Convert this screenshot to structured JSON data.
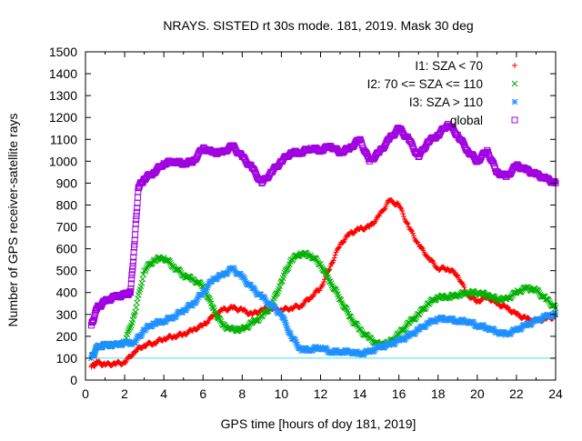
{
  "chart_data": {
    "type": "scatter",
    "title": "NRAYS. SISTED rt 30s mode. 181, 2019. Mask 30 deg",
    "xlabel": "GPS time [hours of doy 181, 2019]",
    "ylabel": "Number of GPS receiver-satellite rays",
    "xlim": [
      0,
      24
    ],
    "ylim": [
      0,
      1500
    ],
    "xticks": [
      "0",
      "2",
      "4",
      "6",
      "8",
      "10",
      "12",
      "14",
      "16",
      "18",
      "20",
      "22",
      "24"
    ],
    "yticks": [
      "0",
      "100",
      "200",
      "300",
      "400",
      "500",
      "600",
      "700",
      "800",
      "900",
      "1000",
      "1100",
      "1200",
      "1300",
      "1400",
      "1500"
    ],
    "grid": false,
    "legend_position": "top-right",
    "reference_line": {
      "y": 100,
      "color": "#40e0e0"
    },
    "series": [
      {
        "name": "I1: SZA < 70",
        "marker": "+",
        "color": "#ff0000",
        "x": [
          0.3,
          0.6,
          1.0,
          1.5,
          2.0,
          2.5,
          3.0,
          3.5,
          4.0,
          4.5,
          5.0,
          5.5,
          6.0,
          6.5,
          7.0,
          7.5,
          8.0,
          8.5,
          9.0,
          9.5,
          10.0,
          10.5,
          11.0,
          11.5,
          12.0,
          12.5,
          13.0,
          13.5,
          14.0,
          14.5,
          15.0,
          15.5,
          16.0,
          16.5,
          17.0,
          17.5,
          18.0,
          18.5,
          19.0,
          19.5,
          20.0,
          20.5,
          21.0,
          21.5,
          22.0,
          22.5,
          23.0,
          23.5,
          24.0
        ],
        "y": [
          60,
          80,
          70,
          75,
          80,
          130,
          160,
          170,
          190,
          200,
          210,
          230,
          250,
          290,
          320,
          330,
          320,
          300,
          320,
          330,
          320,
          330,
          340,
          380,
          420,
          520,
          620,
          670,
          690,
          700,
          750,
          820,
          800,
          700,
          620,
          560,
          510,
          510,
          480,
          390,
          360,
          380,
          350,
          330,
          300,
          280,
          270,
          280,
          290
        ]
      },
      {
        "name": "I2: 70 <= SZA <= 110",
        "marker": "x",
        "color": "#00b000",
        "x": [
          0.3,
          0.6,
          1.0,
          1.5,
          2.0,
          2.5,
          3.0,
          3.5,
          4.0,
          4.5,
          5.0,
          5.5,
          6.0,
          6.5,
          7.0,
          7.5,
          8.0,
          8.5,
          9.0,
          9.5,
          10.0,
          10.5,
          11.0,
          11.5,
          12.0,
          12.5,
          13.0,
          13.5,
          14.0,
          14.5,
          15.0,
          15.5,
          16.0,
          16.5,
          17.0,
          17.5,
          18.0,
          18.5,
          19.0,
          19.5,
          20.0,
          20.5,
          21.0,
          21.5,
          22.0,
          22.5,
          23.0,
          23.5,
          24.0
        ],
        "y": [
          100,
          150,
          160,
          160,
          170,
          300,
          500,
          550,
          560,
          520,
          480,
          460,
          430,
          330,
          250,
          230,
          230,
          260,
          290,
          340,
          450,
          550,
          580,
          570,
          530,
          450,
          370,
          290,
          230,
          190,
          160,
          170,
          210,
          260,
          300,
          350,
          380,
          380,
          390,
          400,
          400,
          390,
          370,
          370,
          400,
          420,
          410,
          370,
          330
        ]
      },
      {
        "name": "I3: SZA > 110",
        "marker": "*",
        "color": "#1e90ff",
        "x": [
          0.3,
          0.6,
          1.0,
          1.5,
          2.0,
          2.5,
          3.0,
          3.5,
          4.0,
          4.5,
          5.0,
          5.5,
          6.0,
          6.5,
          7.0,
          7.5,
          8.0,
          8.5,
          9.0,
          9.5,
          10.0,
          10.5,
          11.0,
          11.5,
          12.0,
          12.5,
          13.0,
          13.5,
          14.0,
          14.5,
          15.0,
          15.5,
          16.0,
          16.5,
          17.0,
          17.5,
          18.0,
          18.5,
          19.0,
          19.5,
          20.0,
          20.5,
          21.0,
          21.5,
          22.0,
          22.5,
          23.0,
          23.5,
          24.0
        ],
        "y": [
          100,
          150,
          160,
          160,
          170,
          170,
          230,
          260,
          270,
          290,
          320,
          350,
          400,
          460,
          480,
          510,
          470,
          420,
          380,
          340,
          300,
          200,
          140,
          140,
          150,
          130,
          130,
          130,
          120,
          130,
          150,
          160,
          180,
          200,
          230,
          260,
          280,
          280,
          270,
          270,
          250,
          240,
          220,
          210,
          230,
          250,
          270,
          290,
          300
        ]
      },
      {
        "name": "global",
        "marker": "square",
        "color": "#a000e0",
        "x": [
          0.3,
          0.6,
          1.0,
          1.5,
          2.0,
          2.3,
          2.5,
          2.7,
          3.0,
          3.5,
          4.0,
          4.5,
          5.0,
          5.5,
          6.0,
          6.5,
          7.0,
          7.5,
          8.0,
          8.5,
          9.0,
          9.5,
          10.0,
          10.5,
          11.0,
          11.5,
          12.0,
          12.5,
          13.0,
          13.5,
          14.0,
          14.5,
          15.0,
          15.5,
          16.0,
          16.5,
          17.0,
          17.5,
          18.0,
          18.5,
          19.0,
          19.5,
          20.0,
          20.5,
          21.0,
          21.5,
          22.0,
          22.5,
          23.0,
          23.5,
          24.0
        ],
        "y": [
          250,
          330,
          360,
          380,
          390,
          400,
          620,
          880,
          920,
          950,
          990,
          1000,
          990,
          1000,
          1060,
          1040,
          1040,
          1070,
          1020,
          970,
          900,
          950,
          1000,
          1040,
          1040,
          1060,
          1050,
          1070,
          1040,
          1060,
          1100,
          1000,
          1040,
          1100,
          1150,
          1100,
          1020,
          1090,
          1120,
          1170,
          1120,
          1050,
          1000,
          1050,
          950,
          930,
          980,
          960,
          940,
          920,
          900
        ]
      }
    ]
  }
}
